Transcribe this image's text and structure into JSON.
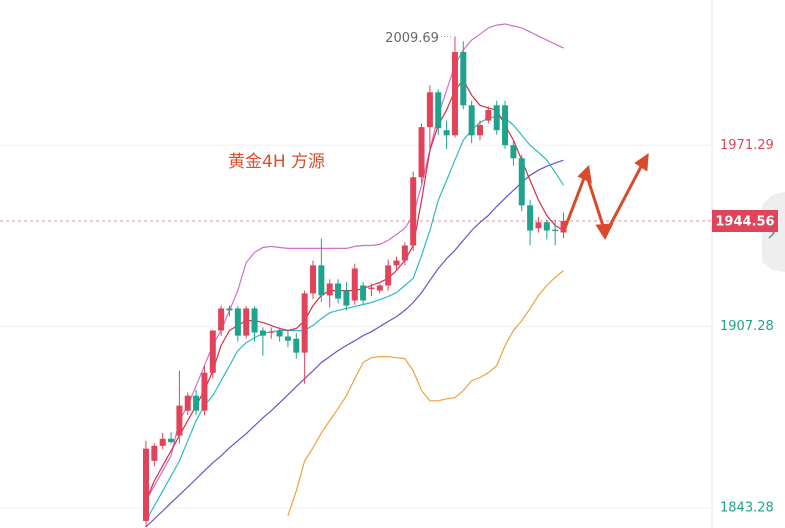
{
  "chart_data": {
    "type": "candlestick",
    "annotations": [
      "黄金4H  方源"
    ],
    "ylim": [
      1836.2,
      2022.56
    ],
    "yticks": [
      1843.28,
      1907.28,
      1971.29
    ],
    "grid": true,
    "up_color": "#e0435a",
    "down_color": "#1fa38c",
    "open": [
      1838.7,
      1859.9,
      1865.2,
      1867.7,
      1868.8,
      1877.6,
      1882.9,
      1877.6,
      1891.0,
      1905.9,
      1913.7,
      1913.7,
      1904.1,
      1913.7,
      1905.9,
      1905.2,
      1905.9,
      1903.8,
      1903.0,
      1898.1,
      1919.0,
      1928.9,
      1918.3,
      1922.5,
      1920.0,
      1916.5,
      1921.8,
      1920.5,
      1920.0,
      1921.8,
      1928.9,
      1930.6,
      1935.9,
      1960.0,
      1977.7,
      1990.0,
      1976.6,
      1974.8,
      2004.2,
      1985.4,
      1974.8,
      1980.0,
      1985.4,
      1985.4,
      1971.3,
      1966.7,
      1950.1,
      1942.0,
      1944.1,
      1941.5,
      1940.5
    ],
    "high": [
      1867.0,
      1866.0,
      1869.8,
      1870.0,
      1891.7,
      1884.0,
      1885.0,
      1893.5,
      1906.0,
      1914.7,
      1914.7,
      1914.5,
      1914.5,
      1914.5,
      1907.0,
      1907.0,
      1907.0,
      1906.0,
      1905.0,
      1920.0,
      1930.6,
      1938.4,
      1924.0,
      1924.0,
      1923.0,
      1929.5,
      1923.0,
      1922.5,
      1922.5,
      1931.0,
      1932.0,
      1937.0,
      1962.0,
      1979.0,
      1992.5,
      1991.0,
      1980.0,
      2009.69,
      2008.0,
      1987.0,
      1980.0,
      1985.0,
      1987.0,
      1987.0,
      1973.0,
      1968.0,
      1952.0,
      1946.0,
      1945.0,
      1945.0,
      1947.5
    ],
    "low": [
      1836.5,
      1858.0,
      1864.0,
      1866.0,
      1866.0,
      1876.0,
      1876.0,
      1876.0,
      1889.0,
      1904.0,
      1911.0,
      1902.0,
      1903.0,
      1902.0,
      1897.0,
      1903.0,
      1902.0,
      1900.0,
      1896.0,
      1887.1,
      1917.0,
      1916.0,
      1914.0,
      1915.5,
      1913.0,
      1915.0,
      1915.0,
      1918.0,
      1919.0,
      1920.0,
      1927.0,
      1929.0,
      1934.0,
      1958.0,
      1970.0,
      1975.0,
      1970.0,
      1974.0,
      1984.0,
      1972.0,
      1973.0,
      1979.0,
      1975.0,
      1970.0,
      1964.0,
      1948.0,
      1936.0,
      1940.5,
      1938.0,
      1936.0,
      1938.5
    ],
    "close": [
      1864.2,
      1865.2,
      1867.7,
      1866.5,
      1879.4,
      1882.9,
      1877.6,
      1891.0,
      1905.9,
      1913.7,
      1913.0,
      1904.1,
      1913.7,
      1905.2,
      1904.1,
      1905.5,
      1903.8,
      1902.3,
      1898.1,
      1919.0,
      1928.9,
      1918.3,
      1922.5,
      1917.2,
      1914.7,
      1927.8,
      1916.5,
      1921.1,
      1921.8,
      1928.9,
      1930.6,
      1935.9,
      1960.0,
      1977.7,
      1990.0,
      1977.3,
      1974.8,
      2004.2,
      1985.4,
      1974.8,
      1978.4,
      1983.7,
      1976.6,
      1971.3,
      1966.7,
      1950.1,
      1941.2,
      1944.1,
      1941.2,
      1941.0,
      1944.56
    ],
    "series": [
      {
        "color": "#d070c8",
        "values": [
          1845.8,
          1851.1,
          1856.4,
          1861.7,
          1874.1,
          1879.4,
          1886.4,
          1893.5,
          1900.6,
          1905.9,
          1913.0,
          1920.0,
          1929.9,
          1933.5,
          1935.2,
          1935.6,
          1935.2,
          1934.9,
          1934.9,
          1934.9,
          1934.9,
          1934.9,
          1934.9,
          1934.9,
          1934.9,
          1935.6,
          1935.9,
          1935.9,
          1936.3,
          1937.7,
          1939.8,
          1942.0,
          1946.5,
          1957.2,
          1969.5,
          1981.9,
          1990.7,
          1999.6,
          2004.9,
          2008.4,
          2010.5,
          2012.7,
          2013.7,
          2014.1,
          2013.4,
          2012.7,
          2011.3,
          2009.8,
          2008.4,
          2007.0,
          2005.6
        ]
      },
      {
        "color": "#7050c8",
        "values": [
          1836.6,
          1839.4,
          1842.2,
          1845.1,
          1847.9,
          1850.7,
          1853.5,
          1856.4,
          1859.2,
          1861.7,
          1864.5,
          1867.0,
          1869.5,
          1872.3,
          1875.1,
          1877.6,
          1880.4,
          1883.2,
          1886.1,
          1888.9,
          1891.7,
          1894.6,
          1896.7,
          1898.8,
          1900.6,
          1902.3,
          1904.1,
          1905.5,
          1907.3,
          1909.1,
          1910.8,
          1913.0,
          1915.8,
          1919.3,
          1923.6,
          1927.8,
          1931.3,
          1934.2,
          1937.7,
          1941.2,
          1944.1,
          1946.5,
          1949.7,
          1952.6,
          1955.4,
          1958.2,
          1960.7,
          1962.5,
          1963.9,
          1965.0,
          1966.0
        ]
      },
      {
        "color": "#30b8c8",
        "values": [
          1838.7,
          1844.0,
          1849.3,
          1854.6,
          1859.9,
          1867.0,
          1874.1,
          1879.4,
          1882.9,
          1888.2,
          1893.5,
          1898.8,
          1901.6,
          1903.4,
          1904.8,
          1905.5,
          1905.9,
          1905.9,
          1905.9,
          1905.9,
          1907.7,
          1910.1,
          1912.2,
          1913.0,
          1913.7,
          1914.4,
          1915.1,
          1915.8,
          1916.8,
          1917.9,
          1919.3,
          1921.8,
          1924.3,
          1932.4,
          1941.2,
          1951.9,
          1958.9,
          1966.0,
          1973.1,
          1976.6,
          1979.4,
          1980.8,
          1981.5,
          1980.8,
          1978.4,
          1974.8,
          1971.3,
          1968.8,
          1966.0,
          1961.8,
          1957.2
        ]
      },
      {
        "color": "#d0304a",
        "values": [
          1845.8,
          1852.8,
          1858.2,
          1863.5,
          1868.8,
          1874.1,
          1879.4,
          1884.7,
          1891.7,
          1900.6,
          1905.9,
          1907.7,
          1909.4,
          1909.4,
          1908.7,
          1907.7,
          1906.6,
          1905.9,
          1906.6,
          1909.4,
          1914.7,
          1918.3,
          1920.0,
          1920.0,
          1920.0,
          1920.0,
          1920.7,
          1921.8,
          1922.9,
          1924.3,
          1927.1,
          1930.6,
          1935.9,
          1951.9,
          1969.5,
          1978.4,
          1983.7,
          1990.7,
          1994.3,
          1989.0,
          1985.4,
          1984.4,
          1983.7,
          1978.4,
          1973.1,
          1966.0,
          1958.9,
          1951.9,
          1946.5,
          1943.0,
          1941.2
        ]
      },
      {
        "color": "#f0a040",
        "values": [
          null,
          null,
          null,
          null,
          null,
          null,
          null,
          null,
          null,
          null,
          null,
          null,
          null,
          null,
          null,
          null,
          null,
          1840.5,
          1849.3,
          1859.9,
          1864.5,
          1869.8,
          1874.1,
          1878.3,
          1882.9,
          1888.9,
          1894.6,
          1896.3,
          1896.7,
          1896.7,
          1896.3,
          1896.0,
          1891.7,
          1884.7,
          1881.1,
          1881.1,
          1881.8,
          1882.2,
          1884.7,
          1888.2,
          1889.3,
          1891.0,
          1893.5,
          1900.6,
          1905.9,
          1909.4,
          1913.7,
          1918.3,
          1921.8,
          1924.6,
          1927.1
        ]
      }
    ]
  }
}
